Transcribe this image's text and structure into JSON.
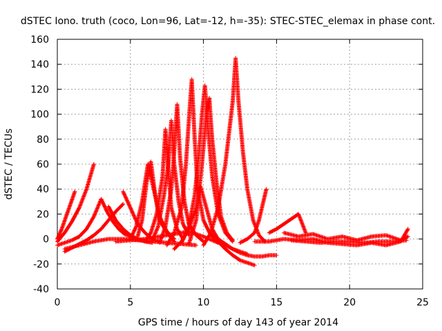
{
  "chart_data": {
    "type": "scatter",
    "title": "dSTEC Iono. truth (coco, Lon=96, Lat=-12, h=-35): STEC-STEC_elemax in phase cont.",
    "xlabel": "GPS time / hours of day 143 of year 2014",
    "ylabel": "dSTEC  / TECUs",
    "xlim": [
      0,
      25
    ],
    "ylim": [
      -40,
      160
    ],
    "x_ticks": [
      0,
      5,
      10,
      15,
      20,
      25
    ],
    "y_ticks": [
      -40,
      -20,
      0,
      20,
      40,
      60,
      80,
      100,
      120,
      140,
      160
    ],
    "x_tick_labels": [
      "0",
      "5",
      "10",
      "15",
      "20",
      "25"
    ],
    "y_tick_labels": [
      "-40",
      "-20",
      "0",
      "20",
      "40",
      "60",
      "80",
      "100",
      "120",
      "140",
      "160"
    ],
    "grid": true,
    "legend": "none",
    "marker": "+",
    "color": "#ff0000",
    "series": [
      {
        "x": [
          0.0,
          0.3,
          0.6,
          0.9,
          1.2
        ],
        "y": [
          0,
          8,
          18,
          28,
          38
        ]
      },
      {
        "x": [
          0.0,
          0.5,
          1.0,
          1.5,
          2.0,
          2.5
        ],
        "y": [
          -2,
          5,
          14,
          25,
          40,
          60
        ]
      },
      {
        "x": [
          0.0,
          0.5,
          1.0,
          1.5,
          2.0,
          2.5,
          3.0
        ],
        "y": [
          -5,
          -3,
          -1,
          2,
          8,
          18,
          32
        ]
      },
      {
        "x": [
          3.0,
          3.4,
          3.8,
          4.2,
          4.6,
          5.0,
          5.4,
          5.8,
          6.2
        ],
        "y": [
          32,
          22,
          14,
          8,
          4,
          2,
          0,
          -1,
          -2
        ]
      },
      {
        "x": [
          0.5,
          1.0,
          1.5,
          2.0,
          2.5,
          3.0,
          3.5,
          4.0,
          4.5
        ],
        "y": [
          -10,
          -7,
          -4,
          -1,
          3,
          8,
          15,
          22,
          28
        ]
      },
      {
        "x": [
          3.5,
          4.0,
          4.5,
          5.0,
          5.5,
          6.0,
          6.5
        ],
        "y": [
          26,
          15,
          8,
          3,
          0,
          -2,
          -3
        ]
      },
      {
        "x": [
          4.5,
          5.0,
          5.5,
          6.0,
          6.5,
          7.0
        ],
        "y": [
          38,
          25,
          12,
          5,
          0,
          -2
        ]
      },
      {
        "x": [
          5.0,
          5.4,
          5.8,
          6.2,
          6.6,
          7.0,
          7.5,
          8.0
        ],
        "y": [
          0,
          10,
          30,
          60,
          40,
          18,
          6,
          0
        ]
      },
      {
        "x": [
          5.5,
          5.8,
          6.1,
          6.4,
          6.7,
          7.0,
          7.5,
          8.0
        ],
        "y": [
          2,
          15,
          45,
          62,
          35,
          15,
          5,
          -2
        ]
      },
      {
        "x": [
          6.0,
          6.4,
          6.8,
          7.2,
          7.4,
          7.6,
          7.8,
          8.2,
          8.6
        ],
        "y": [
          -2,
          5,
          20,
          50,
          88,
          55,
          25,
          8,
          0
        ]
      },
      {
        "x": [
          6.5,
          6.9,
          7.3,
          7.6,
          7.8,
          8.0,
          8.3,
          8.6,
          9.0
        ],
        "y": [
          -1,
          10,
          35,
          60,
          95,
          60,
          30,
          12,
          3
        ]
      },
      {
        "x": [
          7.0,
          7.4,
          7.8,
          8.0,
          8.2,
          8.4,
          8.7,
          9.0,
          9.5,
          10.0
        ],
        "y": [
          -3,
          10,
          40,
          70,
          108,
          65,
          30,
          12,
          3,
          -2
        ]
      },
      {
        "x": [
          7.5,
          8.0,
          8.5,
          8.8,
          9.0,
          9.2,
          9.4,
          9.6,
          10.0,
          10.5,
          11.0
        ],
        "y": [
          -5,
          5,
          25,
          60,
          95,
          128,
          80,
          40,
          15,
          3,
          -3
        ]
      },
      {
        "x": [
          8.5,
          9.0,
          9.4,
          9.7,
          9.9,
          10.1,
          10.3,
          10.6,
          11.0,
          11.5,
          12.0
        ],
        "y": [
          -3,
          10,
          35,
          70,
          100,
          123,
          90,
          50,
          20,
          5,
          -2
        ]
      },
      {
        "x": [
          9.0,
          9.5,
          9.9,
          10.2,
          10.4,
          10.6,
          10.9,
          11.2,
          11.6,
          12.0
        ],
        "y": [
          -4,
          15,
          60,
          100,
          113,
          80,
          45,
          18,
          5,
          -1
        ]
      },
      {
        "x": [
          8.0,
          8.5,
          9.0,
          9.5,
          9.8,
          10.2,
          10.6,
          11.0,
          11.5,
          12.0,
          12.5,
          13.0
        ],
        "y": [
          -8,
          -2,
          8,
          25,
          42,
          25,
          8,
          0,
          -5,
          -8,
          -10,
          -12
        ]
      },
      {
        "x": [
          10.0,
          10.5,
          11.0,
          11.5,
          12.0,
          12.2,
          12.4,
          12.7,
          13.0,
          13.4,
          13.8,
          14.2
        ],
        "y": [
          -5,
          5,
          25,
          60,
          110,
          145,
          110,
          70,
          40,
          15,
          3,
          -2
        ]
      },
      {
        "x": [
          12.5,
          13.0,
          13.5,
          13.8,
          14.1,
          14.3
        ],
        "y": [
          -3,
          0,
          5,
          15,
          30,
          40
        ]
      },
      {
        "x": [
          10.5,
          11.0,
          11.5,
          12.0,
          12.5,
          13.0,
          13.5
        ],
        "y": [
          5,
          -2,
          -8,
          -13,
          -17,
          -19,
          -21
        ]
      },
      {
        "x": [
          11.0,
          11.5,
          12.0,
          12.5,
          13.0,
          13.5,
          14.0,
          14.5,
          15.0
        ],
        "y": [
          0,
          -4,
          -8,
          -11,
          -13,
          -14,
          -14,
          -13,
          -13
        ]
      },
      {
        "x": [
          14.5,
          15.0,
          15.5,
          16.0,
          16.5,
          17.0
        ],
        "y": [
          5,
          8,
          12,
          16,
          20,
          5
        ]
      },
      {
        "x": [
          15.5,
          16.5,
          17.5,
          18.5,
          19.5,
          20.5,
          21.5,
          22.5,
          23.5,
          24.0
        ],
        "y": [
          5,
          2,
          4,
          0,
          2,
          -1,
          2,
          3,
          -1,
          2
        ]
      },
      {
        "x": [
          13.5,
          14.5,
          15.5,
          16.5,
          17.5,
          18.5,
          19.5,
          20.5,
          21.5,
          22.5,
          23.5,
          24.0
        ],
        "y": [
          -2,
          -2,
          0,
          -1,
          0,
          -3,
          -4,
          -5,
          -3,
          -5,
          -2,
          8
        ]
      },
      {
        "x": [
          16.0,
          17.0,
          18.0,
          19.0,
          20.0,
          21.0,
          22.0,
          23.0,
          23.9
        ],
        "y": [
          -1,
          -2,
          -3,
          -2,
          -2,
          -3,
          -2,
          -2,
          -1
        ]
      },
      {
        "x": [
          0.5,
          1.5,
          2.5,
          3.5,
          4.5,
          5.5,
          6.5,
          7.5,
          8.5,
          9.5
        ],
        "y": [
          -8,
          -5,
          -2,
          0,
          0,
          -1,
          -2,
          -3,
          -4,
          -5
        ]
      },
      {
        "x": [
          4.0,
          5.0,
          6.0,
          7.0,
          8.0,
          9.0,
          10.0,
          11.0
        ],
        "y": [
          -2,
          -1,
          0,
          2,
          4,
          6,
          2,
          -3
        ]
      }
    ]
  }
}
